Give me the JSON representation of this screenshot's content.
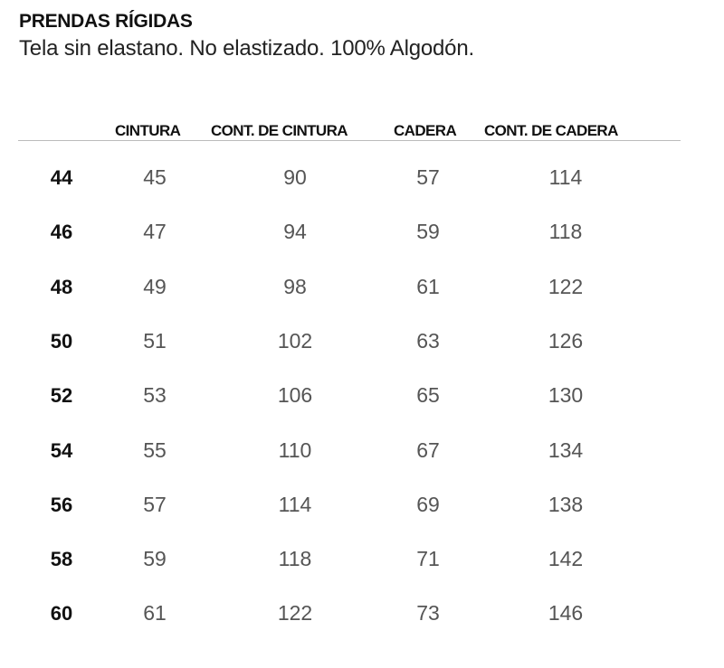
{
  "title": "PRENDAS RÍGIDAS",
  "subtitle": "Tela sin elastano. No elastizado. 100% Algodón.",
  "headers": [
    "CINTURA",
    "CONT. DE CINTURA",
    "CADERA",
    "CONT. DE CADERA"
  ],
  "rows": [
    {
      "size": "44",
      "values": [
        "45",
        "90",
        "57",
        "114"
      ]
    },
    {
      "size": "46",
      "values": [
        "47",
        "94",
        "59",
        "118"
      ]
    },
    {
      "size": "48",
      "values": [
        "49",
        "98",
        "61",
        "122"
      ]
    },
    {
      "size": "50",
      "values": [
        "51",
        "102",
        "63",
        "126"
      ]
    },
    {
      "size": "52",
      "values": [
        "53",
        "106",
        "65",
        "130"
      ]
    },
    {
      "size": "54",
      "values": [
        "55",
        "110",
        "67",
        "134"
      ]
    },
    {
      "size": "56",
      "values": [
        "57",
        "114",
        "69",
        "138"
      ]
    },
    {
      "size": "58",
      "values": [
        "59",
        "118",
        "71",
        "142"
      ]
    },
    {
      "size": "60",
      "values": [
        "61",
        "122",
        "73",
        "146"
      ]
    }
  ]
}
